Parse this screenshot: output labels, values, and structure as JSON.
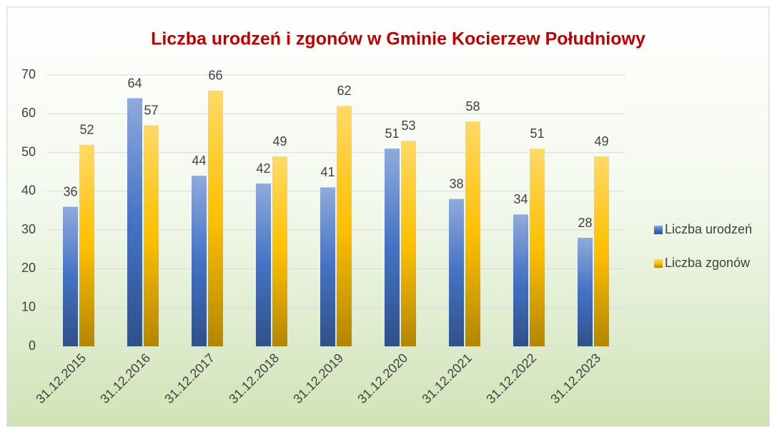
{
  "chart_data": {
    "type": "bar",
    "title": "Liczba urodzeń i zgonów w Gminie Kocierzew Południowy",
    "categories": [
      "31.12.2015",
      "31.12.2016",
      "31.12.2017",
      "31.12.2018",
      "31.12.2019",
      "31.12.2020",
      "31.12.2021",
      "31.12.2022",
      "31.12.2023"
    ],
    "series": [
      {
        "name": "Liczba urodzeń",
        "color": "#4472c4",
        "values": [
          36,
          64,
          44,
          42,
          41,
          51,
          38,
          34,
          28
        ]
      },
      {
        "name": "Liczba zgonów",
        "color": "#ffc000",
        "values": [
          52,
          57,
          66,
          49,
          62,
          53,
          58,
          51,
          49
        ]
      }
    ],
    "ylim": [
      0,
      70
    ],
    "yticks": [
      0,
      10,
      20,
      30,
      40,
      50,
      60,
      70
    ],
    "grid": true,
    "legend": "right"
  }
}
